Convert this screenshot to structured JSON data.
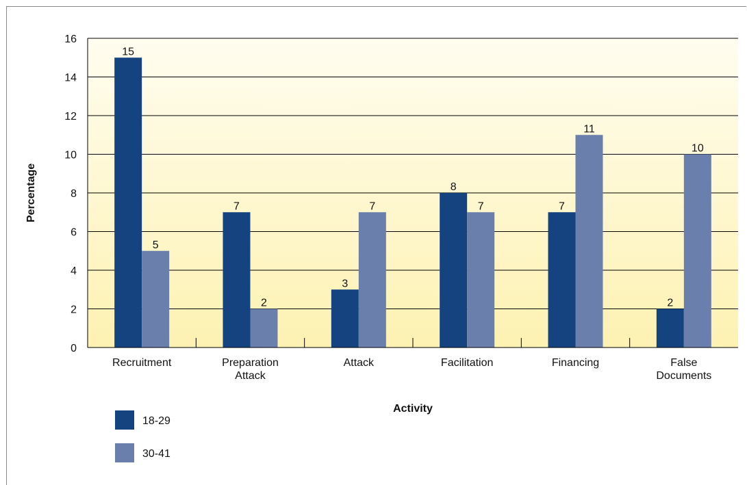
{
  "chart_data": {
    "type": "bar",
    "title": "",
    "xlabel": "Activity",
    "ylabel": "Percentage",
    "categories": [
      [
        "Recruitment"
      ],
      [
        "Preparation",
        "Attack"
      ],
      [
        "Attack"
      ],
      [
        "Facilitation"
      ],
      [
        "Financing"
      ],
      [
        "False",
        "Documents"
      ]
    ],
    "series": [
      {
        "name": "18-29",
        "color": "#154380",
        "values": [
          15,
          7,
          3,
          8,
          7,
          2
        ]
      },
      {
        "name": "30-41",
        "color": "#6b7fad",
        "values": [
          5,
          2,
          7,
          7,
          11,
          10
        ]
      }
    ],
    "ylim": [
      0,
      16
    ],
    "yticks": [
      0,
      2,
      4,
      6,
      8,
      10,
      12,
      14,
      16
    ],
    "grid": true,
    "legend_placement": "bottom-left",
    "background_gradient": [
      "#fffdf0",
      "#fdf2b2"
    ]
  }
}
